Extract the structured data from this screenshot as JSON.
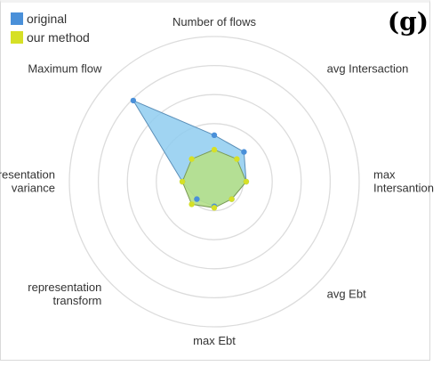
{
  "panel_label": "(g)",
  "chart_data": {
    "type": "radar",
    "title": "",
    "axes": [
      [
        "Number of flows"
      ],
      [
        "avg Intersaction"
      ],
      [
        "max",
        "Intersantion"
      ],
      [
        "avg Ebt"
      ],
      [
        "max Ebt"
      ],
      [
        "representation",
        "transform"
      ],
      [
        "representation",
        "variance"
      ],
      [
        "Maximum flow"
      ]
    ],
    "rlim": [
      0,
      5
    ],
    "rings": 5,
    "series": [
      {
        "name": "original",
        "color": "#4a90d9",
        "fill": "#8fcdf0",
        "values": [
          1.6,
          1.45,
          1.1,
          0.85,
          0.85,
          0.85,
          1.1,
          3.95
        ]
      },
      {
        "name": "our method",
        "color": "#d6e026",
        "fill": "#b5df8c",
        "values": [
          1.1,
          1.1,
          1.1,
          0.85,
          0.9,
          1.1,
          1.1,
          1.1
        ]
      }
    ],
    "legend": {
      "position": "top-left"
    }
  }
}
